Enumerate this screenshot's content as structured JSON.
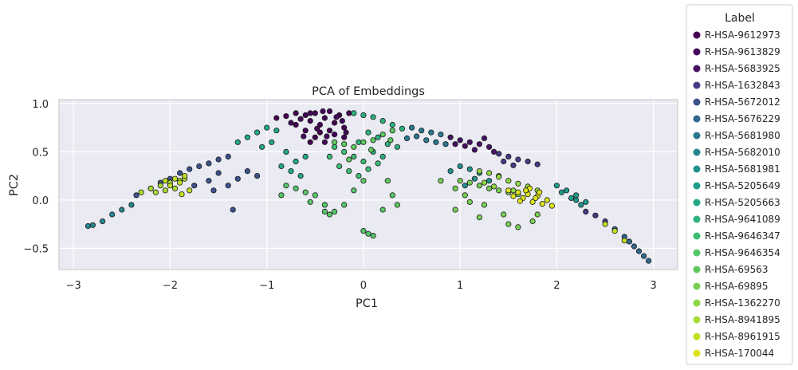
{
  "chart_data": {
    "type": "scatter",
    "title": "PCA of Embeddings",
    "xlabel": "PC1",
    "ylabel": "PC2",
    "xlim": [
      -3.15,
      3.25
    ],
    "ylim": [
      -0.72,
      1.04
    ],
    "xticks": [
      -3,
      -2,
      -1,
      0,
      1,
      2,
      3
    ],
    "yticks": [
      -0.5,
      0.0,
      0.5,
      1.0
    ],
    "xtick_labels": [
      "−3",
      "−2",
      "−1",
      "0",
      "1",
      "2",
      "3"
    ],
    "ytick_labels": [
      "−0.5",
      "0.0",
      "0.5",
      "1.0"
    ],
    "grid": true,
    "legend_placement": "outside-right",
    "legend_title": "Label",
    "background_color": "#eaeaf2",
    "series": [
      {
        "name": "R-HSA-9612973",
        "color": "#440154",
        "points": [
          [
            -0.9,
            0.85
          ],
          [
            -0.8,
            0.87
          ],
          [
            -0.7,
            0.9
          ],
          [
            -0.6,
            0.88
          ],
          [
            -0.55,
            0.82
          ],
          [
            -0.5,
            0.9
          ],
          [
            -0.45,
            0.78
          ],
          [
            -0.4,
            0.85
          ],
          [
            -0.35,
            0.92
          ],
          [
            -0.3,
            0.8
          ],
          [
            -0.25,
            0.88
          ],
          [
            -0.2,
            0.75
          ],
          [
            -0.15,
            0.9
          ],
          [
            -0.5,
            0.65
          ],
          [
            -0.45,
            0.7
          ],
          [
            -0.4,
            0.6
          ],
          [
            -0.3,
            0.68
          ],
          [
            -0.6,
            0.72
          ],
          [
            -0.7,
            0.78
          ],
          [
            -0.35,
            0.72
          ],
          [
            -0.2,
            0.65
          ],
          [
            -0.55,
            0.6
          ]
        ]
      },
      {
        "name": "R-HSA-9613829",
        "color": "#46085c",
        "points": [
          [
            -0.75,
            0.8
          ],
          [
            -0.65,
            0.84
          ],
          [
            -0.55,
            0.9
          ],
          [
            -0.48,
            0.74
          ],
          [
            -0.42,
            0.92
          ],
          [
            -0.28,
            0.86
          ],
          [
            -0.22,
            0.82
          ],
          [
            -0.62,
            0.66
          ],
          [
            -0.38,
            0.66
          ],
          [
            -0.18,
            0.7
          ]
        ]
      },
      {
        "name": "R-HSA-5683925",
        "color": "#471164",
        "points": [
          [
            0.9,
            0.65
          ],
          [
            1.0,
            0.62
          ],
          [
            1.1,
            0.6
          ],
          [
            1.2,
            0.58
          ],
          [
            1.3,
            0.55
          ],
          [
            1.15,
            0.52
          ],
          [
            1.25,
            0.64
          ],
          [
            1.05,
            0.56
          ],
          [
            1.35,
            0.5
          ],
          [
            0.95,
            0.58
          ]
        ]
      },
      {
        "name": "R-HSA-1632843",
        "color": "#443a83",
        "points": [
          [
            1.4,
            0.48
          ],
          [
            1.5,
            0.45
          ],
          [
            1.6,
            0.42
          ],
          [
            1.7,
            0.4
          ],
          [
            1.8,
            0.37
          ],
          [
            1.45,
            0.4
          ],
          [
            1.55,
            0.36
          ],
          [
            2.3,
            -0.12
          ],
          [
            2.4,
            -0.16
          ],
          [
            2.5,
            -0.22
          ]
        ]
      },
      {
        "name": "R-HSA-5672012",
        "color": "#3b528b",
        "points": [
          [
            -2.35,
            0.05
          ],
          [
            -2.2,
            0.12
          ],
          [
            -2.1,
            0.18
          ],
          [
            -2.0,
            0.22
          ],
          [
            -1.9,
            0.28
          ],
          [
            -1.8,
            0.32
          ],
          [
            -1.7,
            0.35
          ],
          [
            -1.6,
            0.38
          ],
          [
            -1.5,
            0.42
          ],
          [
            -1.4,
            0.45
          ],
          [
            -1.6,
            0.2
          ],
          [
            -1.5,
            0.28
          ],
          [
            -1.4,
            0.15
          ],
          [
            -1.3,
            0.22
          ],
          [
            -1.35,
            -0.1
          ],
          [
            -1.2,
            0.3
          ],
          [
            -1.1,
            0.25
          ],
          [
            -1.75,
            0.15
          ],
          [
            -1.55,
            0.1
          ]
        ]
      },
      {
        "name": "R-HSA-5676229",
        "color": "#30678d",
        "points": [
          [
            2.6,
            -0.3
          ],
          [
            2.7,
            -0.38
          ],
          [
            2.8,
            -0.48
          ],
          [
            2.9,
            -0.58
          ],
          [
            2.95,
            -0.63
          ],
          [
            2.75,
            -0.43
          ],
          [
            2.85,
            -0.53
          ]
        ]
      },
      {
        "name": "R-HSA-5681980",
        "color": "#2a788e",
        "points": [
          [
            0.5,
            0.75
          ],
          [
            0.6,
            0.72
          ],
          [
            0.7,
            0.7
          ],
          [
            0.8,
            0.68
          ],
          [
            0.55,
            0.66
          ],
          [
            0.65,
            0.62
          ],
          [
            0.75,
            0.6
          ],
          [
            0.85,
            0.58
          ],
          [
            0.45,
            0.64
          ]
        ]
      },
      {
        "name": "R-HSA-5682010",
        "color": "#25858e",
        "points": [
          [
            -2.6,
            -0.15
          ],
          [
            -2.5,
            -0.1
          ],
          [
            -2.4,
            -0.05
          ],
          [
            -2.8,
            -0.26
          ],
          [
            -2.7,
            -0.22
          ],
          [
            -2.85,
            -0.27
          ]
        ]
      },
      {
        "name": "R-HSA-5681981",
        "color": "#21918c",
        "points": [
          [
            1.0,
            0.35
          ],
          [
            1.1,
            0.32
          ],
          [
            1.2,
            0.28
          ],
          [
            0.9,
            0.3
          ],
          [
            1.15,
            0.22
          ],
          [
            1.05,
            0.15
          ],
          [
            1.3,
            0.2
          ],
          [
            2.2,
            0.0
          ],
          [
            2.25,
            -0.05
          ]
        ]
      },
      {
        "name": "R-HSA-5205649",
        "color": "#1e9c89",
        "points": [
          [
            2.0,
            0.15
          ],
          [
            2.1,
            0.1
          ],
          [
            2.2,
            0.05
          ],
          [
            2.3,
            -0.02
          ],
          [
            2.15,
            0.02
          ],
          [
            2.05,
            0.08
          ]
        ]
      },
      {
        "name": "R-HSA-5205663",
        "color": "#22a884",
        "points": [
          [
            -1.1,
            0.7
          ],
          [
            -1.0,
            0.75
          ],
          [
            -0.9,
            0.72
          ],
          [
            -1.2,
            0.65
          ],
          [
            -1.3,
            0.6
          ],
          [
            -0.95,
            0.6
          ],
          [
            -1.05,
            0.55
          ],
          [
            -0.8,
            0.5
          ],
          [
            -0.6,
            0.45
          ],
          [
            -0.7,
            0.4
          ],
          [
            -0.75,
            0.3
          ],
          [
            -0.85,
            0.35
          ],
          [
            -0.65,
            0.25
          ]
        ]
      },
      {
        "name": "R-HSA-9641089",
        "color": "#2db27d",
        "points": [
          [
            -0.1,
            0.9
          ],
          [
            0.0,
            0.88
          ],
          [
            0.1,
            0.86
          ],
          [
            0.2,
            0.82
          ],
          [
            0.3,
            0.78
          ],
          [
            0.4,
            0.74
          ],
          [
            0.05,
            0.7
          ],
          [
            0.15,
            0.65
          ],
          [
            0.25,
            0.58
          ],
          [
            0.1,
            0.5
          ],
          [
            0.35,
            0.55
          ],
          [
            -0.05,
            0.6
          ],
          [
            0.2,
            0.45
          ]
        ]
      },
      {
        "name": "R-HSA-9646347",
        "color": "#3dbc74",
        "points": [
          [
            -0.3,
            0.55
          ],
          [
            -0.2,
            0.5
          ],
          [
            -0.1,
            0.45
          ],
          [
            0.0,
            0.4
          ],
          [
            -0.25,
            0.35
          ],
          [
            -0.15,
            0.3
          ],
          [
            0.05,
            0.32
          ],
          [
            -0.35,
            0.45
          ],
          [
            0.15,
            0.38
          ],
          [
            -0.05,
            0.25
          ]
        ]
      },
      {
        "name": "R-HSA-9646354",
        "color": "#56c667",
        "points": [
          [
            -0.8,
            0.15
          ],
          [
            -0.7,
            0.12
          ],
          [
            -0.6,
            0.08
          ],
          [
            -0.5,
            0.05
          ],
          [
            -0.4,
            -0.05
          ],
          [
            -0.4,
            -0.12
          ],
          [
            -0.35,
            -0.15
          ],
          [
            -0.3,
            -0.12
          ],
          [
            -0.2,
            -0.05
          ],
          [
            -0.1,
            0.1
          ],
          [
            0.0,
            -0.32
          ],
          [
            0.05,
            -0.35
          ],
          [
            0.1,
            -0.37
          ],
          [
            0.2,
            -0.1
          ],
          [
            0.3,
            0.05
          ],
          [
            -0.85,
            0.05
          ],
          [
            -0.55,
            -0.02
          ]
        ]
      },
      {
        "name": "R-HSA-69563",
        "color": "#5ec962",
        "points": [
          [
            -0.3,
            0.6
          ],
          [
            -0.2,
            0.58
          ],
          [
            -0.1,
            0.55
          ],
          [
            0.0,
            0.6
          ],
          [
            0.1,
            0.62
          ],
          [
            0.2,
            0.68
          ],
          [
            0.3,
            0.72
          ],
          [
            -0.15,
            0.42
          ],
          [
            0.08,
            0.52
          ],
          [
            0.28,
            0.62
          ],
          [
            0.0,
            0.2
          ],
          [
            0.25,
            0.2
          ],
          [
            0.35,
            -0.05
          ]
        ]
      },
      {
        "name": "R-HSA-69895",
        "color": "#75d054",
        "points": [
          [
            1.0,
            0.2
          ],
          [
            1.1,
            0.18
          ],
          [
            1.2,
            0.15
          ],
          [
            1.3,
            0.12
          ],
          [
            1.4,
            0.1
          ],
          [
            1.5,
            0.08
          ],
          [
            1.6,
            0.06
          ],
          [
            0.95,
            0.12
          ],
          [
            1.05,
            0.05
          ],
          [
            1.1,
            -0.02
          ],
          [
            1.25,
            -0.05
          ],
          [
            1.45,
            -0.15
          ],
          [
            1.5,
            -0.25
          ],
          [
            1.6,
            -0.28
          ],
          [
            1.75,
            -0.22
          ],
          [
            1.8,
            -0.15
          ],
          [
            1.2,
            -0.18
          ],
          [
            0.8,
            0.2
          ],
          [
            1.4,
            0.25
          ],
          [
            0.95,
            -0.1
          ]
        ]
      },
      {
        "name": "R-HSA-1362270",
        "color": "#8fd744",
        "points": [
          [
            1.2,
            0.3
          ],
          [
            1.3,
            0.28
          ],
          [
            1.4,
            0.24
          ],
          [
            1.5,
            0.2
          ],
          [
            1.6,
            0.17
          ],
          [
            1.7,
            0.14
          ],
          [
            1.8,
            0.1
          ],
          [
            1.25,
            0.18
          ],
          [
            1.35,
            0.14
          ],
          [
            1.55,
            0.1
          ]
        ]
      },
      {
        "name": "R-HSA-8941895",
        "color": "#a8db34",
        "points": [
          [
            -2.3,
            0.08
          ],
          [
            -2.2,
            0.12
          ],
          [
            -2.1,
            0.15
          ],
          [
            -2.0,
            0.18
          ],
          [
            -1.9,
            0.2
          ],
          [
            -1.85,
            0.22
          ],
          [
            -2.05,
            0.1
          ],
          [
            -1.95,
            0.12
          ],
          [
            -2.15,
            0.08
          ]
        ]
      },
      {
        "name": "R-HSA-8961915",
        "color": "#c2df23",
        "points": [
          [
            -2.0,
            0.15
          ],
          [
            -1.9,
            0.18
          ],
          [
            -1.85,
            0.25
          ],
          [
            -1.95,
            0.22
          ],
          [
            -2.05,
            0.2
          ],
          [
            -1.8,
            0.1
          ],
          [
            -1.88,
            0.06
          ],
          [
            2.5,
            -0.25
          ],
          [
            2.6,
            -0.32
          ],
          [
            2.7,
            -0.42
          ]
        ]
      },
      {
        "name": "R-HSA-170044",
        "color": "#dde318",
        "points": [
          [
            1.5,
            0.1
          ],
          [
            1.6,
            0.08
          ],
          [
            1.7,
            0.06
          ],
          [
            1.8,
            0.04
          ],
          [
            1.9,
            0.0
          ],
          [
            1.65,
            0.02
          ],
          [
            1.75,
            -0.02
          ],
          [
            1.85,
            -0.04
          ],
          [
            1.55,
            0.04
          ],
          [
            1.72,
            0.12
          ],
          [
            1.82,
            0.08
          ],
          [
            1.95,
            -0.06
          ],
          [
            1.62,
            -0.01
          ],
          [
            1.78,
            0.02
          ],
          [
            1.68,
            0.1
          ]
        ]
      }
    ]
  }
}
